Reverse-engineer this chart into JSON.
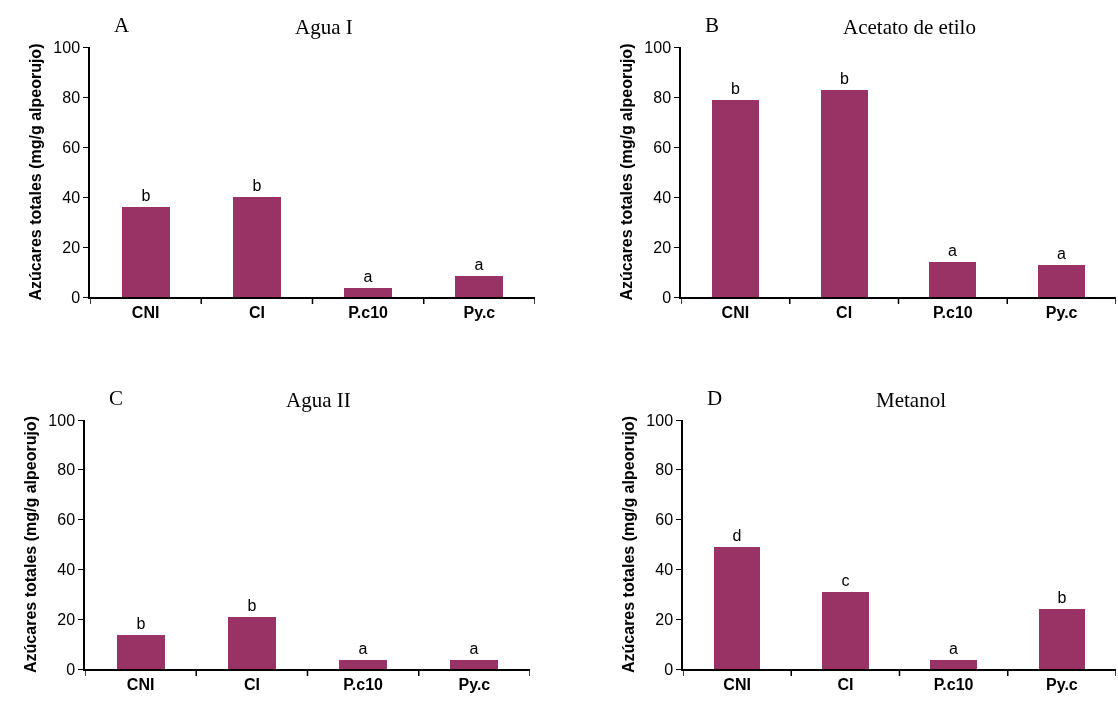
{
  "chart_data": [
    {
      "type": "bar",
      "title": "Agua I",
      "ylabel": "Azúcares totales (mg/g alpeorujo)",
      "annotations": [
        "A"
      ],
      "categories": [
        "CNI",
        "CI",
        "P.c10",
        "Py.c"
      ],
      "values": [
        36,
        40,
        3.5,
        8.5
      ],
      "value_labels": [
        "b",
        "b",
        "a",
        "a"
      ],
      "color": "#993366",
      "ylim": [
        0,
        100
      ],
      "yticks": [
        0,
        20,
        40,
        60,
        80,
        100
      ]
    },
    {
      "type": "bar",
      "title": "Acetato de etilo",
      "ylabel": "Azúcares totales (mg/g alpeorujo)",
      "annotations": [
        "B"
      ],
      "categories": [
        "CNI",
        "CI",
        "P.c10",
        "Py.c"
      ],
      "values": [
        79,
        83,
        14,
        13
      ],
      "value_labels": [
        "b",
        "b",
        "a",
        "a"
      ],
      "color": "#993366",
      "ylim": [
        0,
        100
      ],
      "yticks": [
        0,
        20,
        40,
        60,
        80,
        100
      ]
    },
    {
      "type": "bar",
      "title": "Agua II",
      "ylabel": "Azúcares totales (mg/g alpeorujo)",
      "annotations": [
        "C"
      ],
      "categories": [
        "CNI",
        "CI",
        "P.c10",
        "Py.c"
      ],
      "values": [
        13.5,
        21,
        3.5,
        3.5
      ],
      "value_labels": [
        "b",
        "b",
        "a",
        "a"
      ],
      "color": "#993366",
      "ylim": [
        0,
        100
      ],
      "yticks": [
        0,
        20,
        40,
        60,
        80,
        100
      ]
    },
    {
      "type": "bar",
      "title": "Metanol",
      "ylabel": "Azúcares totales (mg/g alpeorujo)",
      "annotations": [
        "D"
      ],
      "categories": [
        "CNI",
        "CI",
        "P.c10",
        "Py.c"
      ],
      "values": [
        49,
        31,
        3.5,
        24
      ],
      "value_labels": [
        "d",
        "c",
        "a",
        "b"
      ],
      "color": "#993366",
      "ylim": [
        0,
        100
      ],
      "yticks": [
        0,
        20,
        40,
        60,
        80,
        100
      ]
    }
  ]
}
